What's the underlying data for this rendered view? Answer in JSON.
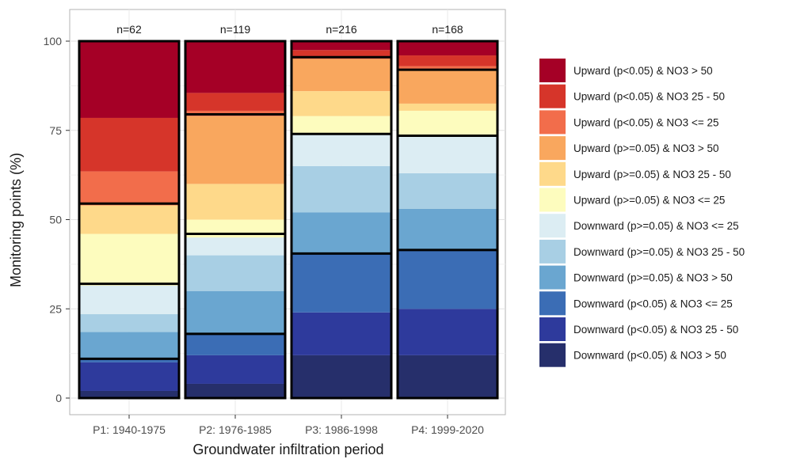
{
  "chart_data": {
    "type": "bar",
    "stacked": true,
    "percent": true,
    "xlabel": "Groundwater infiltration period",
    "ylabel": "Monitoring points (%)",
    "ylim": [
      0,
      100
    ],
    "yticks": [
      0,
      25,
      50,
      75,
      100
    ],
    "grid": true,
    "legend_position": "right",
    "categories": [
      "P1: 1940-1975",
      "P2: 1976-1985",
      "P3: 1986-1998",
      "P4: 1999-2020"
    ],
    "n_labels": [
      "n=62",
      "n=119",
      "n=216",
      "n=168"
    ],
    "series": [
      {
        "name": "Downward (p<0.05) & NO3 > 50",
        "color": "#262f6b",
        "values": [
          2,
          4,
          12,
          12
        ]
      },
      {
        "name": "Downward (p<0.05) & NO3 25 - 50",
        "color": "#2e3a9c",
        "values": [
          8,
          8,
          12,
          13
        ]
      },
      {
        "name": "Downward (p<0.05) & NO3 <= 25",
        "color": "#3b6db5",
        "values": [
          1,
          6,
          16.5,
          16.5
        ]
      },
      {
        "name": "Downward (p>=0.05) & NO3 > 50",
        "color": "#6aa6d0",
        "values": [
          7.5,
          12,
          11.5,
          11.5
        ]
      },
      {
        "name": "Downward (p>=0.05) & NO3 25 - 50",
        "color": "#a8cfe4",
        "values": [
          5,
          10,
          13,
          10
        ]
      },
      {
        "name": "Downward (p>=0.05) & NO3 <= 25",
        "color": "#dcedf3",
        "values": [
          8,
          5,
          9,
          10.5
        ]
      },
      {
        "name": "Upward (p>=0.05) & NO3 <= 25",
        "color": "#fdfcbe",
        "values": [
          14.5,
          5,
          5,
          7
        ]
      },
      {
        "name": "Upward (p>=0.05) & NO3 25 - 50",
        "color": "#fed98a",
        "values": [
          8,
          10,
          7,
          2
        ]
      },
      {
        "name": "Upward (p>=0.05) & NO3 > 50",
        "color": "#f9a75e",
        "values": [
          0,
          19,
          9,
          9.5
        ]
      },
      {
        "name": "Upward (p<0.05) & NO3 <= 25",
        "color": "#f26d4b",
        "values": [
          9.5,
          1.5,
          0.5,
          1
        ]
      },
      {
        "name": "Upward (p<0.05) & NO3 25 - 50",
        "color": "#d6352a",
        "values": [
          15,
          5,
          2,
          3
        ]
      },
      {
        "name": "Upward (p<0.05) & NO3 > 50",
        "color": "#a50026",
        "values": [
          21.5,
          14.5,
          2.5,
          4
        ]
      }
    ],
    "group_boundaries": [
      [
        11,
        32,
        54.5
      ],
      [
        18,
        46,
        79.5
      ],
      [
        40.5,
        74,
        95.5
      ],
      [
        41.5,
        73.5,
        92
      ]
    ]
  }
}
